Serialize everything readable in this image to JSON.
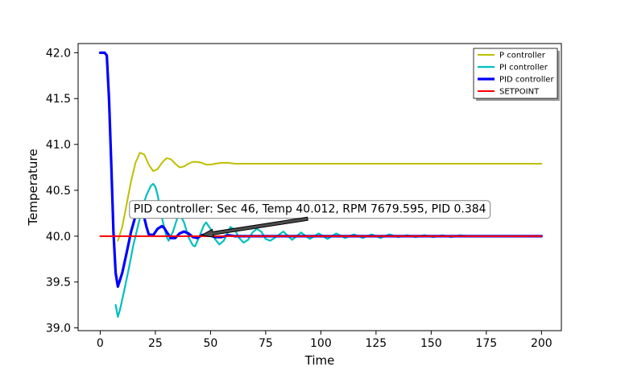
{
  "chart_data": {
    "type": "line",
    "title": "",
    "xlabel": "Time",
    "ylabel": "Temperature",
    "xlim": [
      -10,
      209
    ],
    "ylim": [
      38.97,
      42.1
    ],
    "x_ticks": [
      0,
      25,
      50,
      75,
      100,
      125,
      150,
      175,
      200
    ],
    "x_tick_labels": [
      "0",
      "25",
      "50",
      "75",
      "100",
      "125",
      "150",
      "175",
      "200"
    ],
    "y_ticks": [
      39.0,
      39.5,
      40.0,
      40.5,
      41.0,
      41.5,
      42.0
    ],
    "y_tick_labels": [
      "39.0",
      "39.5",
      "40.0",
      "40.5",
      "41.0",
      "41.5",
      "42.0"
    ],
    "grid": false,
    "legend_position": "upper-right",
    "colors": {
      "p": "#bfbf00",
      "pi": "#00bfbf",
      "pid": "#0000ff",
      "setpoint": "#ff0000",
      "axis": "#000000",
      "annotation_box_border": "#808080",
      "arrow_fill": "#4d4d4d"
    },
    "series": [
      {
        "name": "P controller",
        "color": "#bfbf00",
        "line_width": 2,
        "x": [
          8,
          10,
          12,
          14,
          16,
          18,
          20,
          22,
          24,
          26,
          28,
          30,
          32,
          34,
          36,
          38,
          40,
          42,
          44,
          46,
          48,
          50,
          52,
          55,
          58,
          61,
          64,
          67,
          70,
          75,
          80,
          90,
          100,
          120,
          150,
          200
        ],
        "y": [
          39.95,
          40.1,
          40.35,
          40.6,
          40.8,
          40.91,
          40.89,
          40.78,
          40.71,
          40.73,
          40.8,
          40.85,
          40.84,
          40.79,
          40.75,
          40.76,
          40.79,
          40.81,
          40.81,
          40.8,
          40.78,
          40.78,
          40.79,
          40.8,
          40.8,
          40.79,
          40.79,
          40.79,
          40.79,
          40.79,
          40.79,
          40.79,
          40.79,
          40.79,
          40.79,
          40.79
        ]
      },
      {
        "name": "PI controller",
        "color": "#00bfbf",
        "line_width": 2.2,
        "x": [
          7,
          8,
          9,
          11,
          13,
          15,
          17,
          19,
          21,
          23,
          24,
          25,
          26,
          28,
          30,
          31,
          33,
          35,
          36,
          38,
          40,
          42,
          43,
          45,
          47,
          48,
          50,
          52,
          54,
          56,
          58,
          59,
          61,
          63,
          65,
          67,
          69,
          71,
          73,
          75,
          77,
          79,
          83,
          87,
          91,
          95,
          99,
          103,
          107,
          111,
          115,
          119,
          123,
          127,
          131,
          135,
          139,
          143,
          147,
          151,
          155,
          159,
          163,
          167,
          171,
          175,
          179,
          183,
          187,
          191,
          195,
          200
        ],
        "y": [
          39.25,
          39.12,
          39.2,
          39.42,
          39.65,
          39.9,
          40.1,
          40.3,
          40.45,
          40.55,
          40.57,
          40.54,
          40.45,
          40.2,
          40.0,
          39.95,
          40.05,
          40.2,
          40.24,
          40.15,
          39.99,
          39.9,
          39.89,
          40.0,
          40.12,
          40.15,
          40.08,
          39.97,
          39.91,
          39.95,
          40.05,
          40.1,
          40.07,
          39.98,
          39.93,
          39.96,
          40.04,
          40.08,
          40.05,
          39.97,
          39.95,
          39.98,
          40.05,
          39.96,
          40.04,
          39.97,
          40.03,
          39.97,
          40.03,
          39.98,
          40.02,
          39.98,
          40.02,
          39.98,
          40.02,
          39.99,
          40.01,
          39.99,
          40.01,
          39.99,
          40.01,
          39.99,
          40.01,
          40.0,
          40.0,
          40.0,
          40.0,
          40.0,
          40.0,
          40.0,
          40.0,
          40.0
        ]
      },
      {
        "name": "PID controller",
        "color": "#0000ff",
        "line_width": 3.2,
        "x": [
          0,
          2,
          3,
          4,
          5,
          6,
          7,
          8,
          10,
          12,
          14,
          16,
          17,
          18,
          19,
          20,
          21,
          22,
          24,
          26,
          28,
          29,
          30,
          32,
          34,
          36,
          38,
          40,
          42,
          44,
          46,
          48,
          50,
          52,
          55,
          58,
          61,
          64,
          68,
          75,
          90,
          110,
          140,
          200
        ],
        "y": [
          42.0,
          42.0,
          41.97,
          41.5,
          40.8,
          40.05,
          39.6,
          39.45,
          39.6,
          39.82,
          40.05,
          40.22,
          40.28,
          40.29,
          40.27,
          40.2,
          40.1,
          40.02,
          40.01,
          40.08,
          40.11,
          40.09,
          40.05,
          39.98,
          39.98,
          40.03,
          40.05,
          40.03,
          39.99,
          39.98,
          40.01,
          40.02,
          40.01,
          39.99,
          39.99,
          40.01,
          40.0,
          40.0,
          40.0,
          40.0,
          40.0,
          40.0,
          40.0,
          40.0
        ]
      },
      {
        "name": "SETPOINT",
        "color": "#ff0000",
        "line_width": 2,
        "x": [
          0,
          200
        ],
        "y": [
          40.0,
          40.0
        ]
      }
    ],
    "annotation": {
      "text": "PID controller: Sec 46, Temp 40.012, RPM 7679.595, PID 0.384",
      "text_x": 95,
      "text_y": 40.3,
      "arrow_from": [
        94,
        40.19
      ],
      "arrow_to": [
        46,
        40.012
      ]
    }
  }
}
